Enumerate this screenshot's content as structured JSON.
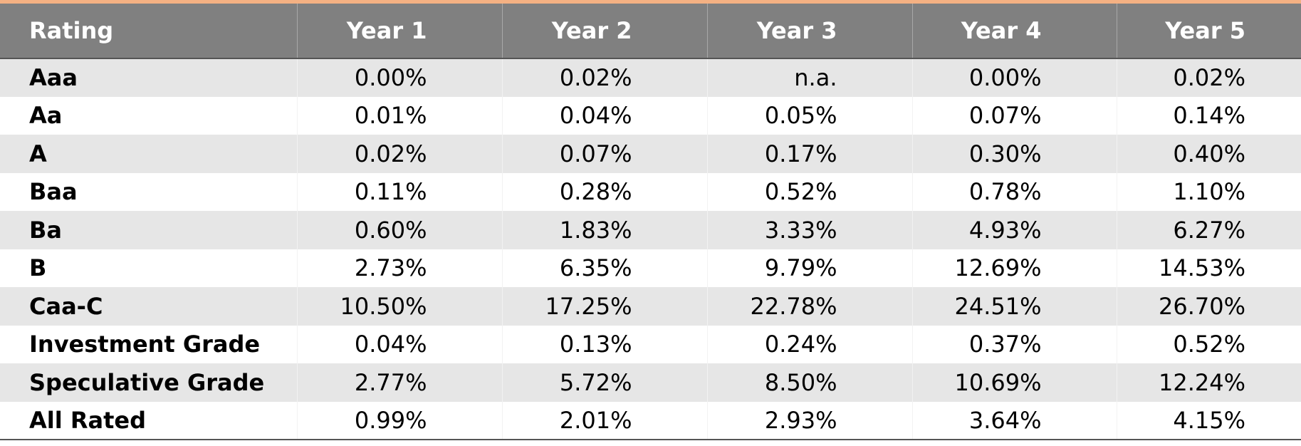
{
  "table": {
    "header": [
      "Rating",
      "Year 1",
      "Year 2",
      "Year 3",
      "Year 4",
      "Year 5"
    ],
    "rows": [
      [
        "Aaa",
        "0.00%",
        "0.02%",
        "n.a.",
        "0.00%",
        "0.02%"
      ],
      [
        "Aa",
        "0.01%",
        "0.04%",
        "0.05%",
        "0.07%",
        "0.14%"
      ],
      [
        "A",
        "0.02%",
        "0.07%",
        "0.17%",
        "0.30%",
        "0.40%"
      ],
      [
        "Baa",
        "0.11%",
        "0.28%",
        "0.52%",
        "0.78%",
        "1.10%"
      ],
      [
        "Ba",
        "0.60%",
        "1.83%",
        "3.33%",
        "4.93%",
        "6.27%"
      ],
      [
        "B",
        "2.73%",
        "6.35%",
        "9.79%",
        "12.69%",
        "14.53%"
      ],
      [
        "Caa-C",
        "10.50%",
        "17.25%",
        "22.78%",
        "24.51%",
        "26.70%"
      ],
      [
        "Investment Grade",
        "0.04%",
        "0.13%",
        "0.24%",
        "0.37%",
        "0.52%"
      ],
      [
        "Speculative Grade",
        "2.77%",
        "5.72%",
        "8.50%",
        "10.69%",
        "12.24%"
      ],
      [
        "All Rated",
        "0.99%",
        "2.01%",
        "2.93%",
        "3.64%",
        "4.15%"
      ]
    ]
  }
}
